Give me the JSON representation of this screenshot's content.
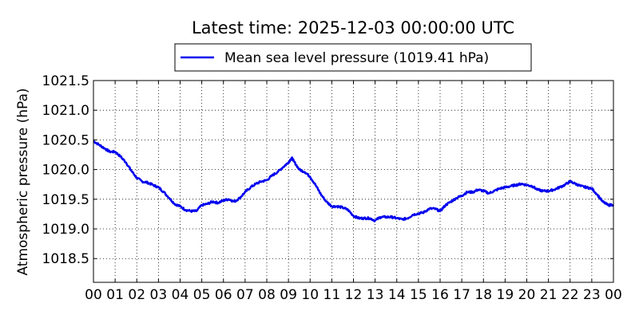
{
  "chart_data": {
    "type": "line",
    "title": "Latest time: 2025-12-03 00:00:00 UTC",
    "xlabel": "",
    "ylabel": "Atmospheric pressure (hPa)",
    "xlim": [
      0,
      24
    ],
    "ylim": [
      1018.1,
      1021.5
    ],
    "grid": true,
    "legend_position": "top-center",
    "x_tick_values": [
      0,
      1,
      2,
      3,
      4,
      5,
      6,
      7,
      8,
      9,
      10,
      11,
      12,
      13,
      14,
      15,
      16,
      17,
      18,
      19,
      20,
      21,
      22,
      23,
      24
    ],
    "x_tick_labels": [
      "00",
      "01",
      "02",
      "03",
      "04",
      "05",
      "06",
      "07",
      "08",
      "09",
      "10",
      "11",
      "12",
      "13",
      "14",
      "15",
      "16",
      "17",
      "18",
      "19",
      "20",
      "21",
      "22",
      "23",
      "00"
    ],
    "y_tick_values": [
      1018.5,
      1019.0,
      1019.5,
      1020.0,
      1020.5,
      1021.0,
      1021.5
    ],
    "y_tick_labels": [
      "1018.5",
      "1019.0",
      "1019.5",
      "1020.0",
      "1020.5",
      "1021.0",
      "1021.5"
    ],
    "series": [
      {
        "name": "Mean sea level pressure (1019.41 hPa)",
        "color": "#0000ee",
        "x": [
          0,
          0.25,
          0.5,
          0.75,
          1.0,
          1.25,
          1.5,
          1.75,
          2.0,
          2.25,
          2.5,
          2.75,
          3.0,
          3.25,
          3.5,
          3.75,
          4.0,
          4.25,
          4.5,
          4.75,
          5.0,
          5.25,
          5.5,
          5.75,
          6.0,
          6.25,
          6.5,
          6.75,
          7.0,
          7.25,
          7.5,
          7.75,
          8.0,
          8.25,
          8.5,
          8.75,
          9.0,
          9.15,
          9.25,
          9.5,
          9.75,
          10.0,
          10.25,
          10.5,
          10.75,
          11.0,
          11.25,
          11.5,
          11.75,
          12.0,
          12.25,
          12.5,
          12.75,
          13.0,
          13.25,
          13.5,
          13.75,
          14.0,
          14.25,
          14.5,
          14.75,
          15.0,
          15.25,
          15.5,
          15.75,
          16.0,
          16.25,
          16.5,
          16.75,
          17.0,
          17.25,
          17.5,
          17.75,
          18.0,
          18.25,
          18.5,
          18.75,
          19.0,
          19.25,
          19.5,
          19.75,
          20.0,
          20.25,
          20.5,
          20.75,
          21.0,
          21.25,
          21.5,
          21.75,
          22.0,
          22.25,
          22.5,
          22.75,
          23.0,
          23.25,
          23.5,
          23.75,
          24.0
        ],
        "values": [
          1020.48,
          1020.42,
          1020.36,
          1020.3,
          1020.3,
          1020.22,
          1020.12,
          1019.98,
          1019.86,
          1019.8,
          1019.78,
          1019.74,
          1019.7,
          1019.62,
          1019.52,
          1019.42,
          1019.38,
          1019.32,
          1019.3,
          1019.3,
          1019.4,
          1019.42,
          1019.46,
          1019.44,
          1019.48,
          1019.5,
          1019.46,
          1019.52,
          1019.62,
          1019.7,
          1019.76,
          1019.8,
          1019.82,
          1019.9,
          1019.96,
          1020.04,
          1020.12,
          1020.2,
          1020.14,
          1020.0,
          1019.96,
          1019.88,
          1019.74,
          1019.58,
          1019.46,
          1019.38,
          1019.38,
          1019.36,
          1019.32,
          1019.22,
          1019.18,
          1019.18,
          1019.18,
          1019.14,
          1019.2,
          1019.2,
          1019.2,
          1019.18,
          1019.16,
          1019.18,
          1019.24,
          1019.26,
          1019.28,
          1019.34,
          1019.34,
          1019.3,
          1019.4,
          1019.46,
          1019.52,
          1019.56,
          1019.62,
          1019.62,
          1019.66,
          1019.64,
          1019.6,
          1019.64,
          1019.68,
          1019.7,
          1019.72,
          1019.74,
          1019.76,
          1019.74,
          1019.72,
          1019.66,
          1019.64,
          1019.64,
          1019.66,
          1019.7,
          1019.74,
          1019.8,
          1019.76,
          1019.72,
          1019.7,
          1019.68,
          1019.58,
          1019.46,
          1019.4,
          1019.41
        ]
      }
    ]
  }
}
